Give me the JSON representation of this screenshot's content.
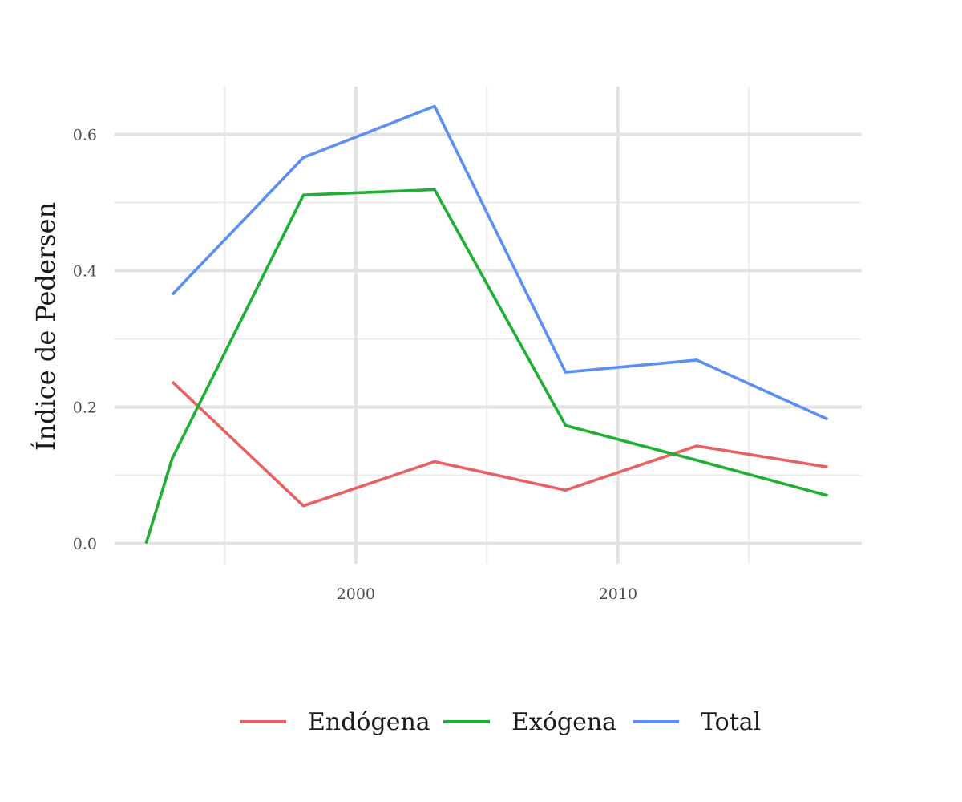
{
  "chart_data": {
    "type": "line",
    "title": "",
    "xlabel": "",
    "ylabel": "Índice de Pedersen",
    "xlim": [
      1990.8,
      2019.3
    ],
    "ylim": [
      -0.03,
      0.67
    ],
    "x_ticks": [
      2000,
      2010
    ],
    "x_minor_ticks": [
      1995,
      2005,
      2015
    ],
    "y_ticks": [
      0.0,
      0.2,
      0.4,
      0.6
    ],
    "y_tick_labels": [
      "0.0",
      "0.2",
      "0.4",
      "0.6"
    ],
    "y_minor_ticks": [
      0.1,
      0.3,
      0.5
    ],
    "grid": true,
    "legend_position": "bottom",
    "series": [
      {
        "name": "Endógena",
        "color": "#e8605f",
        "x": [
          1993,
          1998,
          2003,
          2008,
          2013,
          2018
        ],
        "values": [
          0.237,
          0.055,
          0.12,
          0.078,
          0.143,
          0.112
        ]
      },
      {
        "name": "Exógena",
        "color": "#1faf34",
        "x": [
          1992,
          1993,
          1998,
          2003,
          2008,
          2013,
          2018
        ],
        "values": [
          0.0,
          0.125,
          0.511,
          0.519,
          0.173,
          0.122,
          0.07
        ]
      },
      {
        "name": "Total",
        "color": "#5b8ff2",
        "x": [
          1993,
          1998,
          2003,
          2008,
          2013,
          2018
        ],
        "values": [
          0.365,
          0.566,
          0.641,
          0.251,
          0.269,
          0.182
        ]
      }
    ]
  }
}
